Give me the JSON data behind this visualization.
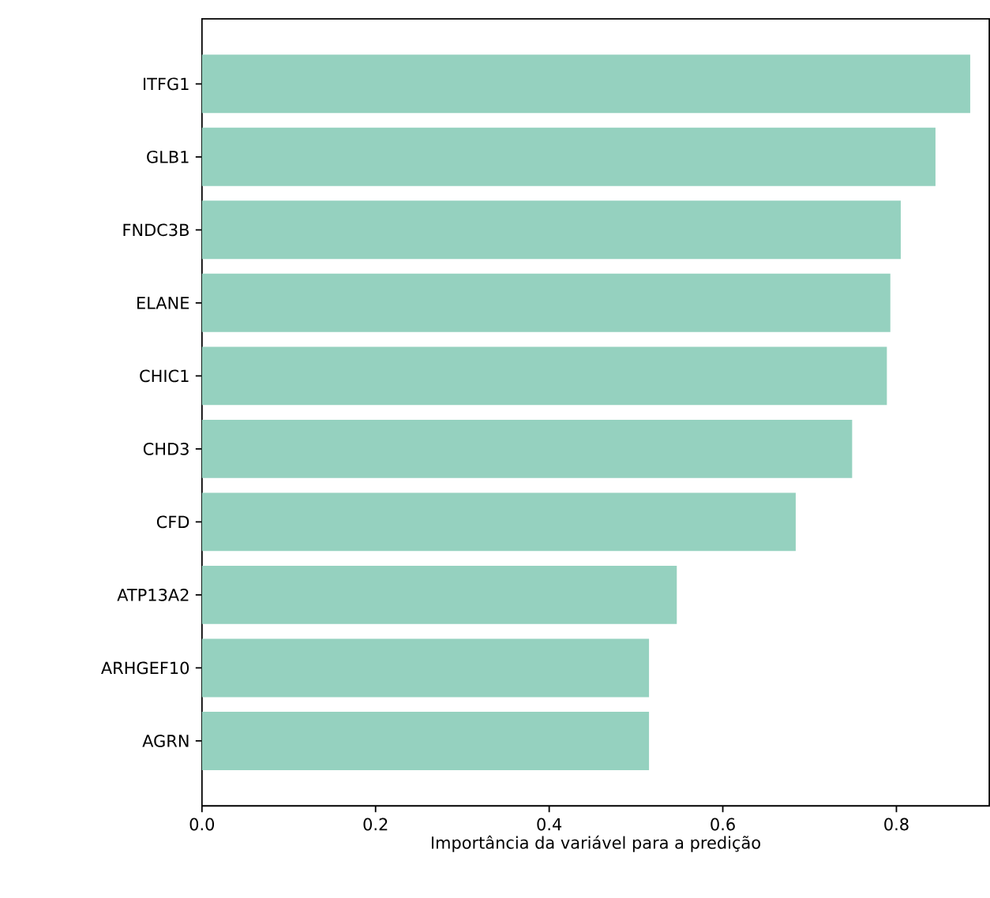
{
  "chart_data": {
    "type": "bar",
    "orientation": "horizontal",
    "xlabel": "Importância da variável para a predição",
    "categories": [
      "ITFG1",
      "GLB1",
      "FNDC3B",
      "ELANE",
      "CHIC1",
      "CHD3",
      "CFD",
      "ATP13A2",
      "ARHGEF10",
      "AGRN"
    ],
    "values": [
      0.885,
      0.845,
      0.805,
      0.793,
      0.789,
      0.749,
      0.684,
      0.547,
      0.515,
      0.515
    ],
    "color": "#95d1bf",
    "xlim": [
      0,
      0.907
    ],
    "xticks": [
      {
        "value": 0,
        "label": "0.0"
      },
      {
        "value": 0.2,
        "label": "0.2"
      },
      {
        "value": 0.4,
        "label": "0.4"
      },
      {
        "value": 0.6,
        "label": "0.6"
      },
      {
        "value": 0.8,
        "label": "0.8"
      }
    ]
  }
}
